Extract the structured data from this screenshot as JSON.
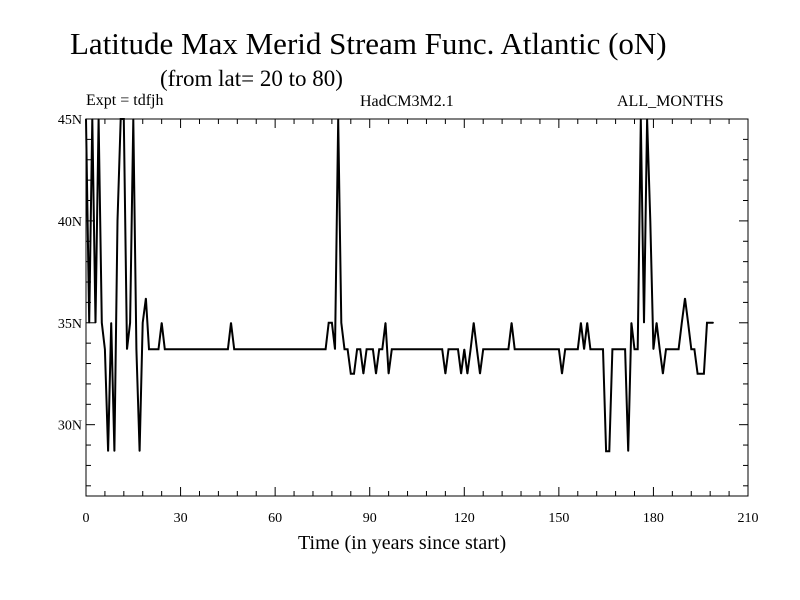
{
  "chart_data": {
    "type": "line",
    "title": "Latitude Max Merid Stream Func. Atlantic (oN)",
    "subtitle": "(from lat= 20 to 80)",
    "annotations": {
      "left": "Expt = tdfjh",
      "center": "HadCM3M2.1",
      "right": "ALL_MONTHS"
    },
    "xlabel": "Time (in years since start)",
    "ylabel": "",
    "xlim": [
      0,
      210
    ],
    "ylim": [
      26.5,
      45
    ],
    "x_ticks": [
      0,
      30,
      60,
      90,
      120,
      150,
      180,
      210
    ],
    "x_tick_labels": [
      "0",
      "30",
      "60",
      "90",
      "120",
      "150",
      "180",
      "210"
    ],
    "y_ticks": [
      30,
      35,
      40,
      45
    ],
    "y_tick_labels": [
      "30N",
      "35N",
      "40N",
      "45N"
    ],
    "grid": false,
    "series": [
      {
        "color": "#000000",
        "x": [
          0,
          1,
          2,
          3,
          4,
          5,
          6,
          7,
          8,
          9,
          10,
          11,
          12,
          13,
          14,
          15,
          16,
          17,
          18,
          19,
          20,
          21,
          22,
          23,
          24,
          25,
          26,
          27,
          28,
          29,
          30,
          31,
          32,
          33,
          34,
          35,
          36,
          37,
          38,
          39,
          40,
          41,
          42,
          43,
          44,
          45,
          46,
          47,
          48,
          49,
          50,
          51,
          52,
          53,
          54,
          55,
          56,
          57,
          58,
          59,
          60,
          61,
          62,
          63,
          64,
          65,
          66,
          67,
          68,
          69,
          70,
          71,
          72,
          73,
          74,
          75,
          76,
          77,
          78,
          79,
          80,
          81,
          82,
          83,
          84,
          85,
          86,
          87,
          88,
          89,
          90,
          91,
          92,
          93,
          94,
          95,
          96,
          97,
          98,
          99,
          100,
          101,
          102,
          103,
          104,
          105,
          106,
          107,
          108,
          109,
          110,
          111,
          112,
          113,
          114,
          115,
          116,
          117,
          118,
          119,
          120,
          121,
          122,
          123,
          124,
          125,
          126,
          127,
          128,
          129,
          130,
          131,
          132,
          133,
          134,
          135,
          136,
          137,
          138,
          139,
          140,
          141,
          142,
          143,
          144,
          145,
          146,
          147,
          148,
          149,
          150,
          151,
          152,
          153,
          154,
          155,
          156,
          157,
          158,
          159,
          160,
          161,
          162,
          163,
          164,
          165,
          166,
          167,
          168,
          169,
          170,
          171,
          172,
          173,
          174,
          175,
          176,
          177,
          178,
          179,
          180,
          181,
          182,
          183,
          184,
          185,
          186,
          187,
          188,
          189,
          190,
          191,
          192,
          193,
          194,
          195,
          196,
          197,
          198,
          199
        ],
        "y": [
          45,
          35,
          45,
          35,
          45,
          35,
          33.7,
          28.7,
          35,
          28.7,
          40,
          45,
          45,
          33.7,
          35,
          45,
          33.7,
          28.7,
          35,
          36.2,
          33.7,
          33.7,
          33.7,
          33.7,
          35,
          33.7,
          33.7,
          33.7,
          33.7,
          33.7,
          33.7,
          33.7,
          33.7,
          33.7,
          33.7,
          33.7,
          33.7,
          33.7,
          33.7,
          33.7,
          33.7,
          33.7,
          33.7,
          33.7,
          33.7,
          33.7,
          35,
          33.7,
          33.7,
          33.7,
          33.7,
          33.7,
          33.7,
          33.7,
          33.7,
          33.7,
          33.7,
          33.7,
          33.7,
          33.7,
          33.7,
          33.7,
          33.7,
          33.7,
          33.7,
          33.7,
          33.7,
          33.7,
          33.7,
          33.7,
          33.7,
          33.7,
          33.7,
          33.7,
          33.7,
          33.7,
          33.7,
          35,
          35,
          33.7,
          45,
          35,
          33.7,
          33.7,
          32.5,
          32.5,
          33.7,
          33.7,
          32.5,
          33.7,
          33.7,
          33.7,
          32.5,
          33.7,
          33.7,
          35,
          32.5,
          33.7,
          33.7,
          33.7,
          33.7,
          33.7,
          33.7,
          33.7,
          33.7,
          33.7,
          33.7,
          33.7,
          33.7,
          33.7,
          33.7,
          33.7,
          33.7,
          33.7,
          32.5,
          33.7,
          33.7,
          33.7,
          33.7,
          32.5,
          33.7,
          32.5,
          33.7,
          35,
          33.7,
          32.5,
          33.7,
          33.7,
          33.7,
          33.7,
          33.7,
          33.7,
          33.7,
          33.7,
          33.7,
          35,
          33.7,
          33.7,
          33.7,
          33.7,
          33.7,
          33.7,
          33.7,
          33.7,
          33.7,
          33.7,
          33.7,
          33.7,
          33.7,
          33.7,
          33.7,
          32.5,
          33.7,
          33.7,
          33.7,
          33.7,
          33.7,
          35,
          33.7,
          35,
          33.7,
          33.7,
          33.7,
          33.7,
          33.7,
          28.7,
          28.7,
          33.7,
          33.7,
          33.7,
          33.7,
          33.7,
          28.7,
          35,
          33.7,
          33.7,
          45,
          35,
          45,
          40,
          33.7,
          35,
          33.7,
          32.5,
          33.7,
          33.7,
          33.7,
          33.7,
          33.7,
          35,
          36.2,
          35,
          33.7,
          33.7,
          32.5,
          32.5,
          32.5,
          35,
          35,
          35
        ]
      }
    ]
  }
}
